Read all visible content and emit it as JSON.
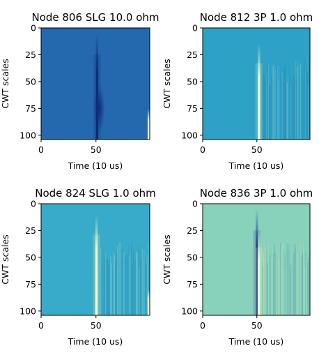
{
  "chart_data": [
    {
      "type": "heatmap",
      "title": "Node 806 SLG 10.0 ohm",
      "xlabel": "Time (10 us)",
      "ylabel": "CWT scales",
      "xlim": [
        0,
        99
      ],
      "ylim": [
        104,
        0
      ],
      "xticks": [
        0,
        50
      ],
      "yticks": [
        0,
        25,
        50,
        75,
        100
      ],
      "xtick_labels": [
        "0",
        "50"
      ],
      "ytick_labels": [
        "0",
        "25",
        "50",
        "75",
        "100"
      ],
      "background_color": "#2468ad",
      "features": [
        {
          "kind": "spike",
          "x": 51,
          "color": "#0d2a73",
          "from_scale": 5,
          "to_scale": 104
        },
        {
          "kind": "blob",
          "x": 53,
          "scale_center": 75,
          "color": "#16287a"
        },
        {
          "kind": "edge",
          "x": 98,
          "color": "#fff9c4",
          "from_scale": 75,
          "to_scale": 104
        }
      ]
    },
    {
      "type": "heatmap",
      "title": "Node 812 3P 1.0 ohm",
      "xlabel": "Time (10 us)",
      "ylabel": "CWT scales",
      "xlim": [
        0,
        99
      ],
      "ylim": [
        104,
        0
      ],
      "xticks": [
        0,
        50
      ],
      "yticks": [
        0,
        25,
        50,
        75,
        100
      ],
      "xtick_labels": [
        "0",
        "50"
      ],
      "ytick_labels": [
        "0",
        "25",
        "50",
        "75",
        "100"
      ],
      "background_color": "#2ea2c6",
      "features": [
        {
          "kind": "spike",
          "x": 52,
          "color": "#fbfdc6",
          "from_scale": 15,
          "to_scale": 104
        },
        {
          "kind": "stripes",
          "x_from": 55,
          "x_to": 98,
          "from_scale": 30,
          "to_scale": 104
        }
      ]
    },
    {
      "type": "heatmap",
      "title": "Node 824 SLG 1.0 ohm",
      "xlabel": "Time (10 us)",
      "ylabel": "CWT scales",
      "xlim": [
        0,
        99
      ],
      "ylim": [
        104,
        0
      ],
      "xticks": [
        0,
        50
      ],
      "yticks": [
        0,
        25,
        50,
        75,
        100
      ],
      "xtick_labels": [
        "0",
        "50"
      ],
      "ytick_labels": [
        "0",
        "25",
        "50",
        "75",
        "100"
      ],
      "background_color": "#37abc9",
      "features": [
        {
          "kind": "spike",
          "x": 50.5,
          "color": "#fdfec8",
          "from_scale": 10,
          "to_scale": 104
        },
        {
          "kind": "stripes",
          "x_from": 54,
          "x_to": 98,
          "from_scale": 35,
          "to_scale": 104
        },
        {
          "kind": "edge",
          "x": 98,
          "color": "#fdfec8",
          "from_scale": 80,
          "to_scale": 104
        }
      ]
    },
    {
      "type": "heatmap",
      "title": "Node 836 3P 1.0 ohm",
      "xlabel": "Time (10 us)",
      "ylabel": "CWT scales",
      "xlim": [
        0,
        99
      ],
      "ylim": [
        104,
        0
      ],
      "xticks": [
        0,
        50
      ],
      "yticks": [
        0,
        25,
        50,
        75,
        100
      ],
      "xtick_labels": [
        "0",
        "50"
      ],
      "ytick_labels": [
        "0",
        "25",
        "50",
        "75",
        "100"
      ],
      "background_color": "#88d1bb",
      "features": [
        {
          "kind": "spike",
          "x": 50,
          "color": "#1a3a8c",
          "from_scale": 5,
          "to_scale": 104
        },
        {
          "kind": "spike",
          "x": 52,
          "color": "#fbfdc6",
          "from_scale": 25,
          "to_scale": 104
        },
        {
          "kind": "stripes",
          "x_from": 55,
          "x_to": 98,
          "from_scale": 35,
          "to_scale": 104
        }
      ]
    }
  ]
}
